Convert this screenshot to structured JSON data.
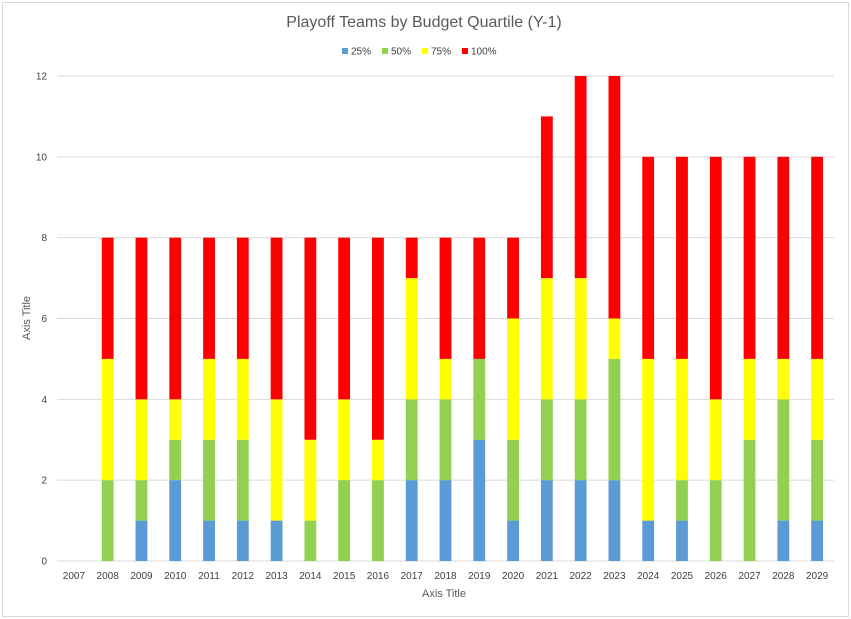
{
  "chart_data": {
    "type": "bar",
    "stacked": true,
    "title": "Playoff Teams by Budget Quartile (Y-1)",
    "xlabel": "Axis Title",
    "ylabel": "Axis Title",
    "ylim": [
      0,
      12
    ],
    "yticks": [
      "0",
      "2",
      "4",
      "6",
      "8",
      "10",
      "12"
    ],
    "grid": true,
    "legend_position": "top",
    "categories": [
      "2007",
      "2008",
      "2009",
      "2010",
      "2011",
      "2012",
      "2013",
      "2014",
      "2015",
      "2016",
      "2017",
      "2018",
      "2019",
      "2020",
      "2021",
      "2022",
      "2023",
      "2024",
      "2025",
      "2026",
      "2027",
      "2028",
      "2029"
    ],
    "series": [
      {
        "name": "25%",
        "color": "#5b9bd5",
        "values": [
          0,
          0,
          1,
          2,
          1,
          1,
          1,
          0,
          0,
          0,
          2,
          2,
          3,
          1,
          2,
          2,
          2,
          1,
          1,
          0,
          0,
          1,
          1
        ]
      },
      {
        "name": "50%",
        "color": "#92d050",
        "values": [
          0,
          2,
          1,
          1,
          2,
          2,
          0,
          1,
          2,
          2,
          2,
          2,
          2,
          2,
          2,
          2,
          3,
          0,
          1,
          2,
          3,
          3,
          2
        ]
      },
      {
        "name": "75%",
        "color": "#ffff00",
        "values": [
          0,
          3,
          2,
          1,
          2,
          2,
          3,
          2,
          2,
          1,
          3,
          1,
          0,
          3,
          3,
          3,
          1,
          4,
          3,
          2,
          2,
          1,
          2
        ]
      },
      {
        "name": "100%",
        "color": "#ff0000",
        "values": [
          0,
          3,
          4,
          4,
          3,
          3,
          4,
          5,
          4,
          5,
          1,
          3,
          3,
          2,
          4,
          5,
          6,
          5,
          5,
          6,
          5,
          5,
          5
        ]
      }
    ]
  }
}
